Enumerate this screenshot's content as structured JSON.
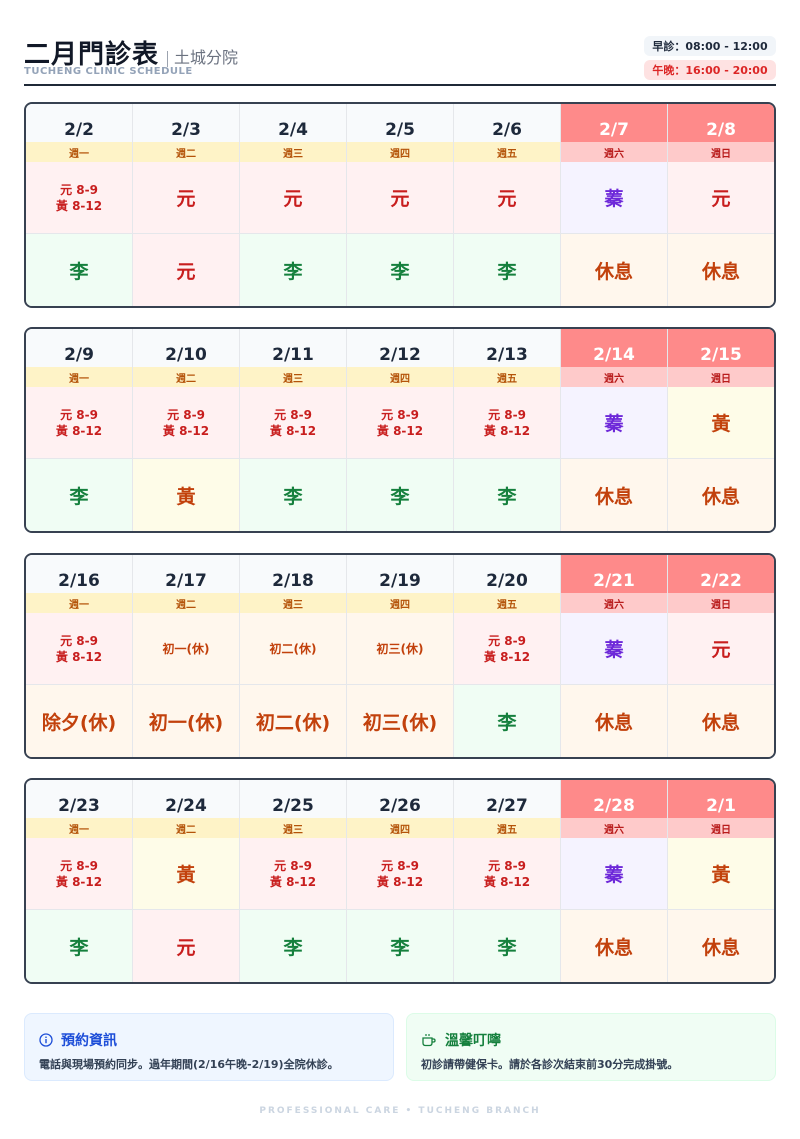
{
  "header": {
    "title": "二月門診表",
    "branch": "土城分院",
    "subtitle_en": "TUCHENG CLINIC SCHEDULE",
    "hours": [
      {
        "label": "早診：08:00 - 12:00",
        "type": "am"
      },
      {
        "label": "午晚：16:00 - 20:00",
        "type": "pm"
      }
    ]
  },
  "weeks": [
    [
      {
        "date": "2/2",
        "weekday": "週一",
        "am": [
          "元 8-9",
          "黃 8-12"
        ],
        "am_color": "red",
        "pm": "李",
        "pm_color": "green"
      },
      {
        "date": "2/3",
        "weekday": "週二",
        "am": [
          "元"
        ],
        "am_color": "red",
        "pm": "元",
        "pm_color": "red"
      },
      {
        "date": "2/4",
        "weekday": "週三",
        "am": [
          "元"
        ],
        "am_color": "red",
        "pm": "李",
        "pm_color": "green"
      },
      {
        "date": "2/5",
        "weekday": "週四",
        "am": [
          "元"
        ],
        "am_color": "red",
        "pm": "李",
        "pm_color": "green"
      },
      {
        "date": "2/6",
        "weekday": "週五",
        "am": [
          "元"
        ],
        "am_color": "red",
        "pm": "李",
        "pm_color": "green"
      },
      {
        "date": "2/7",
        "weekday": "週六",
        "weekend": true,
        "am": [
          "蓁"
        ],
        "am_color": "purple",
        "pm": "休息",
        "pm_color": "orange"
      },
      {
        "date": "2/8",
        "weekday": "週日",
        "weekend": true,
        "am": [
          "元"
        ],
        "am_color": "red",
        "pm": "休息",
        "pm_color": "orange"
      }
    ],
    [
      {
        "date": "2/9",
        "weekday": "週一",
        "am": [
          "元 8-9",
          "黃 8-12"
        ],
        "am_color": "red",
        "pm": "李",
        "pm_color": "green"
      },
      {
        "date": "2/10",
        "weekday": "週二",
        "am": [
          "元 8-9",
          "黃 8-12"
        ],
        "am_color": "red",
        "pm": "黃",
        "pm_color": "yellow"
      },
      {
        "date": "2/11",
        "weekday": "週三",
        "am": [
          "元 8-9",
          "黃 8-12"
        ],
        "am_color": "red",
        "pm": "李",
        "pm_color": "green"
      },
      {
        "date": "2/12",
        "weekday": "週四",
        "am": [
          "元 8-9",
          "黃 8-12"
        ],
        "am_color": "red",
        "pm": "李",
        "pm_color": "green"
      },
      {
        "date": "2/13",
        "weekday": "週五",
        "am": [
          "元 8-9",
          "黃 8-12"
        ],
        "am_color": "red",
        "pm": "李",
        "pm_color": "green"
      },
      {
        "date": "2/14",
        "weekday": "週六",
        "weekend": true,
        "am": [
          "蓁"
        ],
        "am_color": "purple",
        "pm": "休息",
        "pm_color": "orange"
      },
      {
        "date": "2/15",
        "weekday": "週日",
        "weekend": true,
        "am": [
          "黃"
        ],
        "am_color": "yellow",
        "pm": "休息",
        "pm_color": "orange"
      }
    ],
    [
      {
        "date": "2/16",
        "weekday": "週一",
        "am": [
          "元 8-9",
          "黃 8-12"
        ],
        "am_color": "red",
        "pm": "除夕(休)",
        "pm_color": "orange"
      },
      {
        "date": "2/17",
        "weekday": "週二",
        "am": [
          "初一(休)"
        ],
        "am_color": "orange",
        "am_small": true,
        "pm": "初一(休)",
        "pm_color": "orange"
      },
      {
        "date": "2/18",
        "weekday": "週三",
        "am": [
          "初二(休)"
        ],
        "am_color": "orange",
        "am_small": true,
        "pm": "初二(休)",
        "pm_color": "orange"
      },
      {
        "date": "2/19",
        "weekday": "週四",
        "am": [
          "初三(休)"
        ],
        "am_color": "orange",
        "am_small": true,
        "pm": "初三(休)",
        "pm_color": "orange"
      },
      {
        "date": "2/20",
        "weekday": "週五",
        "am": [
          "元 8-9",
          "黃 8-12"
        ],
        "am_color": "red",
        "pm": "李",
        "pm_color": "green"
      },
      {
        "date": "2/21",
        "weekday": "週六",
        "weekend": true,
        "am": [
          "蓁"
        ],
        "am_color": "purple",
        "pm": "休息",
        "pm_color": "orange"
      },
      {
        "date": "2/22",
        "weekday": "週日",
        "weekend": true,
        "am": [
          "元"
        ],
        "am_color": "red",
        "pm": "休息",
        "pm_color": "orange"
      }
    ],
    [
      {
        "date": "2/23",
        "weekday": "週一",
        "am": [
          "元 8-9",
          "黃 8-12"
        ],
        "am_color": "red",
        "pm": "李",
        "pm_color": "green"
      },
      {
        "date": "2/24",
        "weekday": "週二",
        "am": [
          "黃"
        ],
        "am_color": "yellow",
        "pm": "元",
        "pm_color": "red"
      },
      {
        "date": "2/25",
        "weekday": "週三",
        "am": [
          "元 8-9",
          "黃 8-12"
        ],
        "am_color": "red",
        "pm": "李",
        "pm_color": "green"
      },
      {
        "date": "2/26",
        "weekday": "週四",
        "am": [
          "元 8-9",
          "黃 8-12"
        ],
        "am_color": "red",
        "pm": "李",
        "pm_color": "green"
      },
      {
        "date": "2/27",
        "weekday": "週五",
        "am": [
          "元 8-9",
          "黃 8-12"
        ],
        "am_color": "red",
        "pm": "李",
        "pm_color": "green"
      },
      {
        "date": "2/28",
        "weekday": "週六",
        "weekend": true,
        "am": [
          "蓁"
        ],
        "am_color": "purple",
        "pm": "休息",
        "pm_color": "orange"
      },
      {
        "date": "2/1",
        "weekday": "週日",
        "weekend": true,
        "am": [
          "黃"
        ],
        "am_color": "yellow",
        "pm": "休息",
        "pm_color": "orange"
      }
    ]
  ],
  "info": {
    "booking": {
      "icon": "info-icon",
      "title": "預約資訊",
      "text": "電話與現場預約同步。過年期間(2/16午晚-2/19)全院休診。"
    },
    "reminder": {
      "icon": "coffee-cup-icon",
      "title": "溫馨叮嚀",
      "text": "初診請帶健保卡。請於各診次結束前30分完成掛號。"
    }
  },
  "footer": "PROFESSIONAL CARE • TUCHENG BRANCH"
}
